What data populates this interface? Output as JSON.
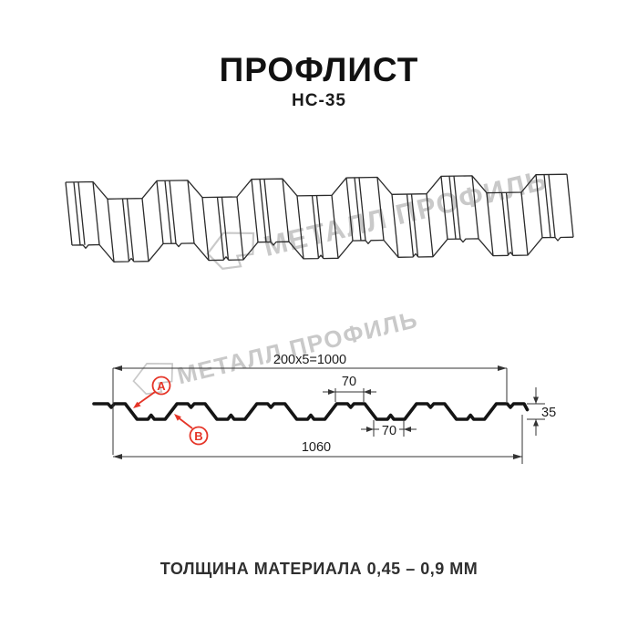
{
  "header": {
    "title": "ПРОФЛИСТ",
    "subtitle": "НС-35"
  },
  "watermark": {
    "text": "МЕТАЛЛ ПРОФИЛЬ"
  },
  "diagram": {
    "dim_top": "200x5=1000",
    "dim_rib_top_width": "70",
    "dim_rib_bottom_width": "70",
    "dim_height": "35",
    "dim_total_width": "1060",
    "label_a": "A",
    "label_b": "B"
  },
  "footer": {
    "text": "ТОЛЩИНА МАТЕРИАЛА 0,45 – 0,9 ММ"
  },
  "colors": {
    "accent_red": "#e53528",
    "line": "#2b2b2b",
    "watermark": "#c9c9c9"
  }
}
